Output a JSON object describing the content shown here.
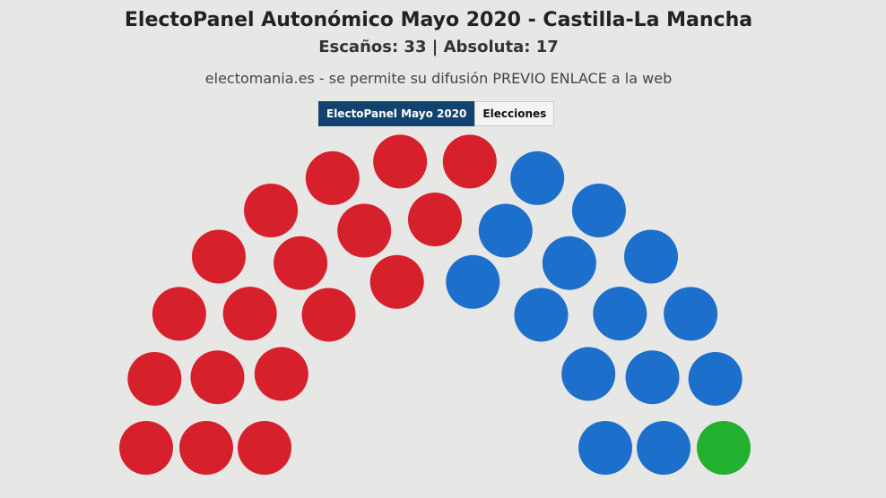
{
  "chart_data": {
    "type": "parliament",
    "title": "ElectoPanel Autonómico Mayo 2020 - Castilla-La Mancha",
    "subtitle": "Escaños: 33 | Absoluta: 17",
    "credit": "electomania.es - se permite su difusión PREVIO ENLACE a la web",
    "tabs": [
      "ElectoPanel Mayo 2020",
      "Elecciones"
    ],
    "series": [
      {
        "color": "#d6202b",
        "values": [
          18
        ]
      },
      {
        "color": "#1d6fcc",
        "values": [
          14
        ]
      },
      {
        "color": "#22b02e",
        "values": [
          1
        ]
      }
    ]
  }
}
